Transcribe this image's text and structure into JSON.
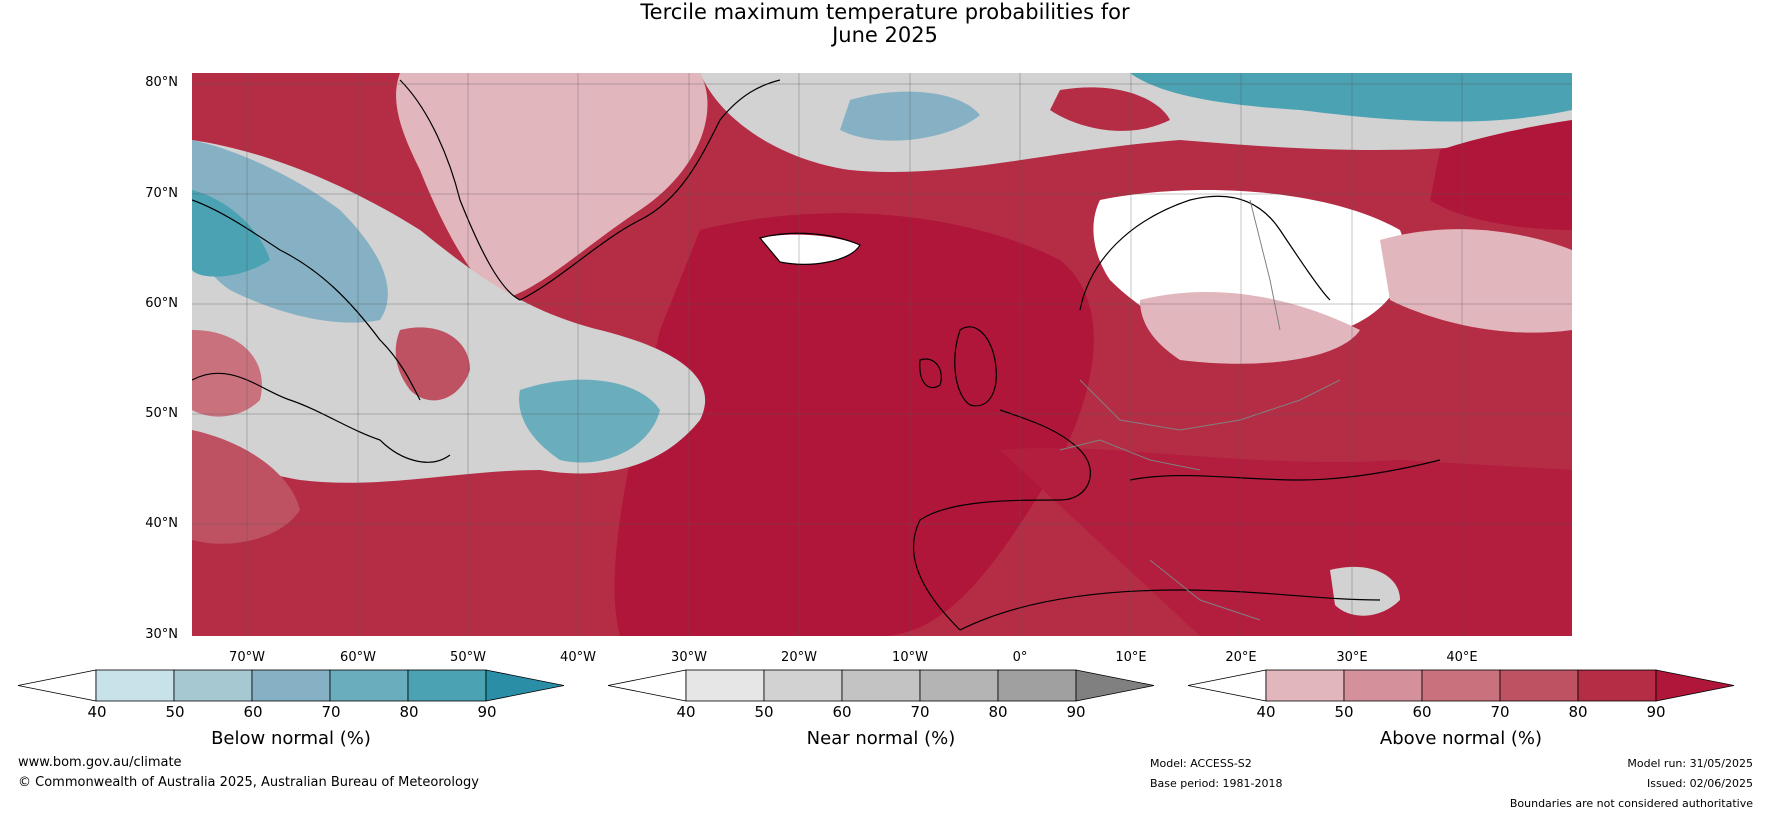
{
  "title": {
    "line1": "Tercile maximum temperature probabilities for",
    "line2": "June 2025"
  },
  "map": {
    "lat_labels": [
      "80°N",
      "70°N",
      "60°N",
      "50°N",
      "40°N",
      "30°N"
    ],
    "lon_labels": [
      "70°W",
      "60°W",
      "50°W",
      "40°W",
      "30°W",
      "20°W",
      "10°W",
      "0°",
      "10°E",
      "20°E",
      "30°E",
      "40°E"
    ],
    "extent": {
      "lon": [
        -77,
        48
      ],
      "lat": [
        30,
        81
      ]
    }
  },
  "colorbars": [
    {
      "name": "below",
      "title": "Below normal (%)",
      "ticks": [
        "40",
        "50",
        "60",
        "70",
        "80",
        "90"
      ],
      "colors": [
        "#c7e2e9",
        "#a6c9d1",
        "#86b1c4",
        "#6aaebe",
        "#4ba2b3",
        "#2a8fa6"
      ]
    },
    {
      "name": "near",
      "title": "Near normal (%)",
      "ticks": [
        "40",
        "50",
        "60",
        "70",
        "80",
        "90"
      ],
      "colors": [
        "#e6e6e6",
        "#d2d2d2",
        "#c3c3c3",
        "#b4b4b4",
        "#a0a0a0",
        "#808080"
      ]
    },
    {
      "name": "above",
      "title": "Above normal (%)",
      "ticks": [
        "40",
        "50",
        "60",
        "70",
        "80",
        "90"
      ],
      "colors": [
        "#e2b6bd",
        "#d5919b",
        "#ca717e",
        "#be5262",
        "#b52d45",
        "#b0163a"
      ]
    }
  ],
  "footer": {
    "website": "www.bom.gov.au/climate",
    "copyright": "© Commonwealth of Australia 2025, Australian Bureau of Meteorology",
    "model": "Model: ACCESS-S2",
    "base_period": "Base period: 1981-2018",
    "model_run": "Model run: 31/05/2025",
    "issued": "Issued: 02/06/2025",
    "disclaimer": "Boundaries are not considered authoritative"
  },
  "colors": {
    "above_base": "#b0163a",
    "coast": "#000000",
    "borders": "#808080"
  }
}
